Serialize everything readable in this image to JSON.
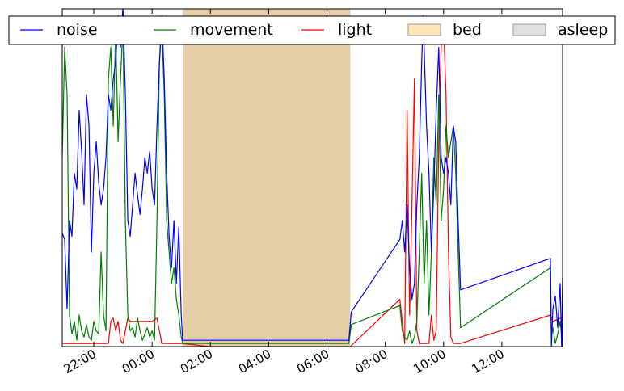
{
  "chart_data": {
    "type": "line",
    "title": "",
    "xlabel": "",
    "ylabel": "",
    "x_axis": {
      "kind": "time",
      "range": [
        "20:55",
        "14:05"
      ],
      "ticks": [
        "22:00",
        "00:00",
        "02:00",
        "04:00",
        "06:00",
        "08:00",
        "10:00",
        "12:00"
      ]
    },
    "y_axis": {
      "range": [
        0,
        1
      ],
      "tick_labels_shown": false
    },
    "grid": false,
    "legend": {
      "placement": "top, outside plot, single row",
      "entries": [
        {
          "key": "noise",
          "label": "noise",
          "kind": "line",
          "color": "#0000ff"
        },
        {
          "key": "movement",
          "label": "movement",
          "kind": "line",
          "color": "#008000"
        },
        {
          "key": "light",
          "label": "light",
          "kind": "line",
          "color": "#ff0000"
        },
        {
          "key": "bed",
          "label": "bed",
          "kind": "patch",
          "color": "#ffe4b5"
        },
        {
          "key": "asleep",
          "label": "asleep",
          "kind": "patch",
          "color": "#e0e0e0"
        }
      ]
    },
    "spans": [
      {
        "name": "bed",
        "start": "01:03",
        "end": "06:48",
        "color": "#e4cda7"
      }
    ],
    "series": [
      {
        "name": "noise",
        "color": "#0000ff",
        "points": [
          [
            "20:55",
            0.36
          ],
          [
            "21:00",
            0.34
          ],
          [
            "21:05",
            0.12
          ],
          [
            "21:10",
            0.4
          ],
          [
            "21:15",
            0.35
          ],
          [
            "21:20",
            0.55
          ],
          [
            "21:25",
            0.5
          ],
          [
            "21:30",
            0.75
          ],
          [
            "21:35",
            0.62
          ],
          [
            "21:40",
            0.45
          ],
          [
            "21:45",
            0.8
          ],
          [
            "21:50",
            0.7
          ],
          [
            "21:55",
            0.3
          ],
          [
            "22:00",
            0.55
          ],
          [
            "22:05",
            0.65
          ],
          [
            "22:10",
            0.52
          ],
          [
            "22:15",
            0.45
          ],
          [
            "22:20",
            0.5
          ],
          [
            "22:25",
            0.6
          ],
          [
            "22:30",
            0.8
          ],
          [
            "22:35",
            0.75
          ],
          [
            "22:40",
            0.85
          ],
          [
            "22:45",
            0.9
          ],
          [
            "22:50",
            1.05
          ],
          [
            "22:55",
            0.95
          ],
          [
            "23:00",
            1.08
          ],
          [
            "23:05",
            0.8
          ],
          [
            "23:10",
            0.4
          ],
          [
            "23:15",
            0.35
          ],
          [
            "23:20",
            0.45
          ],
          [
            "23:25",
            0.55
          ],
          [
            "23:30",
            0.48
          ],
          [
            "23:35",
            0.42
          ],
          [
            "23:40",
            0.5
          ],
          [
            "23:45",
            0.6
          ],
          [
            "23:50",
            0.55
          ],
          [
            "23:55",
            0.62
          ],
          [
            "00:00",
            0.5
          ],
          [
            "00:05",
            0.45
          ],
          [
            "00:10",
            0.7
          ],
          [
            "00:15",
            0.9
          ],
          [
            "00:20",
            1.05
          ],
          [
            "00:25",
            0.85
          ],
          [
            "00:30",
            0.55
          ],
          [
            "00:35",
            0.35
          ],
          [
            "00:40",
            0.25
          ],
          [
            "00:45",
            0.4
          ],
          [
            "00:50",
            0.2
          ],
          [
            "00:55",
            0.38
          ],
          [
            "01:00",
            0.1
          ],
          [
            "01:03",
            0.02
          ],
          [
            "01:30",
            0.02
          ],
          [
            "02:00",
            0.02
          ],
          [
            "02:30",
            0.02
          ],
          [
            "03:00",
            0.02
          ],
          [
            "03:30",
            0.02
          ],
          [
            "04:00",
            0.02
          ],
          [
            "04:30",
            0.02
          ],
          [
            "05:00",
            0.02
          ],
          [
            "05:30",
            0.02
          ],
          [
            "06:00",
            0.02
          ],
          [
            "06:30",
            0.02
          ],
          [
            "06:45",
            0.02
          ],
          [
            "06:50",
            0.11
          ],
          [
            "08:30",
            0.34
          ],
          [
            "08:35",
            0.4
          ],
          [
            "08:40",
            0.3
          ],
          [
            "08:45",
            0.45
          ],
          [
            "08:50",
            0.25
          ],
          [
            "08:55",
            0.15
          ],
          [
            "09:00",
            0.2
          ],
          [
            "09:05",
            0.45
          ],
          [
            "09:10",
            0.6
          ],
          [
            "09:15",
            0.9
          ],
          [
            "09:18",
            1.05
          ],
          [
            "09:20",
            0.95
          ],
          [
            "09:25",
            0.7
          ],
          [
            "09:30",
            0.55
          ],
          [
            "09:35",
            0.3
          ],
          [
            "09:40",
            0.5
          ],
          [
            "09:45",
            0.75
          ],
          [
            "09:50",
            0.95
          ],
          [
            "09:55",
            0.6
          ],
          [
            "10:00",
            0.55
          ],
          [
            "10:05",
            0.6
          ],
          [
            "10:10",
            0.55
          ],
          [
            "10:15",
            0.45
          ],
          [
            "10:20",
            0.7
          ],
          [
            "10:25",
            0.65
          ],
          [
            "10:30",
            0.4
          ],
          [
            "10:35",
            0.18
          ],
          [
            "13:40",
            0.28
          ],
          [
            "13:42",
            0.0
          ],
          [
            "13:45",
            0.12
          ],
          [
            "13:50",
            0.16
          ],
          [
            "13:55",
            0.06
          ],
          [
            "14:00",
            0.2
          ],
          [
            "14:03",
            0.0
          ],
          [
            "14:05",
            0.22
          ]
        ]
      },
      {
        "name": "movement",
        "color": "#008000",
        "points": [
          [
            "20:55",
            0.6
          ],
          [
            "21:00",
            0.95
          ],
          [
            "21:05",
            0.8
          ],
          [
            "21:10",
            0.1
          ],
          [
            "21:15",
            0.04
          ],
          [
            "21:20",
            0.08
          ],
          [
            "21:25",
            0.02
          ],
          [
            "21:30",
            0.1
          ],
          [
            "21:35",
            0.05
          ],
          [
            "21:40",
            0.03
          ],
          [
            "21:45",
            0.07
          ],
          [
            "21:50",
            0.03
          ],
          [
            "21:55",
            0.02
          ],
          [
            "22:00",
            0.08
          ],
          [
            "22:05",
            0.05
          ],
          [
            "22:10",
            0.04
          ],
          [
            "22:15",
            0.3
          ],
          [
            "22:20",
            0.1
          ],
          [
            "22:25",
            0.05
          ],
          [
            "22:30",
            0.85
          ],
          [
            "22:35",
            0.95
          ],
          [
            "22:40",
            0.7
          ],
          [
            "22:45",
            1.0
          ],
          [
            "22:50",
            0.65
          ],
          [
            "22:55",
            0.85
          ],
          [
            "23:00",
            1.02
          ],
          [
            "23:05",
            0.4
          ],
          [
            "23:10",
            0.1
          ],
          [
            "23:15",
            0.05
          ],
          [
            "23:20",
            0.06
          ],
          [
            "23:25",
            0.03
          ],
          [
            "23:30",
            0.09
          ],
          [
            "23:35",
            0.05
          ],
          [
            "23:40",
            0.02
          ],
          [
            "23:45",
            0.04
          ],
          [
            "23:50",
            0.06
          ],
          [
            "23:55",
            0.03
          ],
          [
            "00:00",
            0.05
          ],
          [
            "00:05",
            0.02
          ],
          [
            "00:10",
            0.4
          ],
          [
            "00:15",
            0.9
          ],
          [
            "00:20",
            1.02
          ],
          [
            "00:25",
            0.8
          ],
          [
            "00:30",
            0.4
          ],
          [
            "00:35",
            0.3
          ],
          [
            "00:40",
            0.2
          ],
          [
            "00:45",
            0.25
          ],
          [
            "00:50",
            0.15
          ],
          [
            "00:55",
            0.1
          ],
          [
            "01:00",
            0.03
          ],
          [
            "01:03",
            0.01
          ],
          [
            "01:30",
            0.01
          ],
          [
            "02:00",
            0.01
          ],
          [
            "02:30",
            0.01
          ],
          [
            "03:00",
            0.01
          ],
          [
            "03:30",
            0.01
          ],
          [
            "04:00",
            0.01
          ],
          [
            "04:30",
            0.01
          ],
          [
            "05:00",
            0.01
          ],
          [
            "05:30",
            0.01
          ],
          [
            "06:00",
            0.01
          ],
          [
            "06:30",
            0.01
          ],
          [
            "06:45",
            0.01
          ],
          [
            "06:50",
            0.07
          ],
          [
            "08:30",
            0.13
          ],
          [
            "08:35",
            0.05
          ],
          [
            "08:40",
            0.03
          ],
          [
            "08:45",
            0.02
          ],
          [
            "08:50",
            0.05
          ],
          [
            "08:55",
            0.01
          ],
          [
            "09:00",
            0.03
          ],
          [
            "09:05",
            0.08
          ],
          [
            "09:10",
            0.3
          ],
          [
            "09:15",
            0.55
          ],
          [
            "09:20",
            0.2
          ],
          [
            "09:25",
            0.4
          ],
          [
            "09:30",
            0.1
          ],
          [
            "09:35",
            0.3
          ],
          [
            "09:40",
            0.6
          ],
          [
            "09:45",
            0.45
          ],
          [
            "09:50",
            0.8
          ],
          [
            "09:55",
            0.4
          ],
          [
            "10:00",
            0.5
          ],
          [
            "10:05",
            0.7
          ],
          [
            "10:10",
            0.6
          ],
          [
            "10:15",
            0.65
          ],
          [
            "10:20",
            0.7
          ],
          [
            "10:25",
            0.55
          ],
          [
            "10:30",
            0.3
          ],
          [
            "10:35",
            0.06
          ],
          [
            "13:40",
            0.25
          ],
          [
            "13:42",
            0.03
          ],
          [
            "13:45",
            0.06
          ],
          [
            "13:50",
            0.01
          ],
          [
            "13:55",
            0.04
          ],
          [
            "14:00",
            0.08
          ],
          [
            "14:05",
            0.01
          ]
        ]
      },
      {
        "name": "light",
        "color": "#ff0000",
        "points": [
          [
            "20:55",
            0.01
          ],
          [
            "21:00",
            0.01
          ],
          [
            "21:30",
            0.01
          ],
          [
            "21:45",
            0.01
          ],
          [
            "22:00",
            0.01
          ],
          [
            "22:30",
            0.01
          ],
          [
            "22:35",
            0.08
          ],
          [
            "22:40",
            0.09
          ],
          [
            "22:45",
            0.05
          ],
          [
            "22:50",
            0.08
          ],
          [
            "22:55",
            0.02
          ],
          [
            "23:00",
            0.01
          ],
          [
            "23:10",
            0.09
          ],
          [
            "23:15",
            0.08
          ],
          [
            "23:30",
            0.08
          ],
          [
            "23:45",
            0.08
          ],
          [
            "00:00",
            0.08
          ],
          [
            "00:10",
            0.09
          ],
          [
            "00:15",
            0.05
          ],
          [
            "00:20",
            0.01
          ],
          [
            "00:30",
            0.01
          ],
          [
            "01:00",
            0.01
          ],
          [
            "02:00",
            0.0
          ],
          [
            "03:00",
            0.0
          ],
          [
            "04:00",
            0.0
          ],
          [
            "05:00",
            0.0
          ],
          [
            "06:00",
            0.0
          ],
          [
            "06:48",
            0.0
          ],
          [
            "08:30",
            0.15
          ],
          [
            "08:40",
            0.01
          ],
          [
            "08:45",
            0.75
          ],
          [
            "08:50",
            0.1
          ],
          [
            "08:55",
            0.45
          ],
          [
            "09:00",
            0.85
          ],
          [
            "09:05",
            0.05
          ],
          [
            "09:10",
            0.01
          ],
          [
            "09:30",
            0.01
          ],
          [
            "09:35",
            0.1
          ],
          [
            "09:40",
            0.02
          ],
          [
            "09:45",
            0.05
          ],
          [
            "09:50",
            0.65
          ],
          [
            "09:55",
            0.95
          ],
          [
            "10:00",
            1.02
          ],
          [
            "10:05",
            0.8
          ],
          [
            "10:10",
            0.3
          ],
          [
            "10:15",
            0.03
          ],
          [
            "10:20",
            0.01
          ],
          [
            "10:35",
            0.01
          ],
          [
            "13:40",
            0.1
          ],
          [
            "13:45",
            0.08
          ],
          [
            "14:00",
            0.09
          ],
          [
            "14:05",
            0.09
          ]
        ]
      }
    ]
  }
}
